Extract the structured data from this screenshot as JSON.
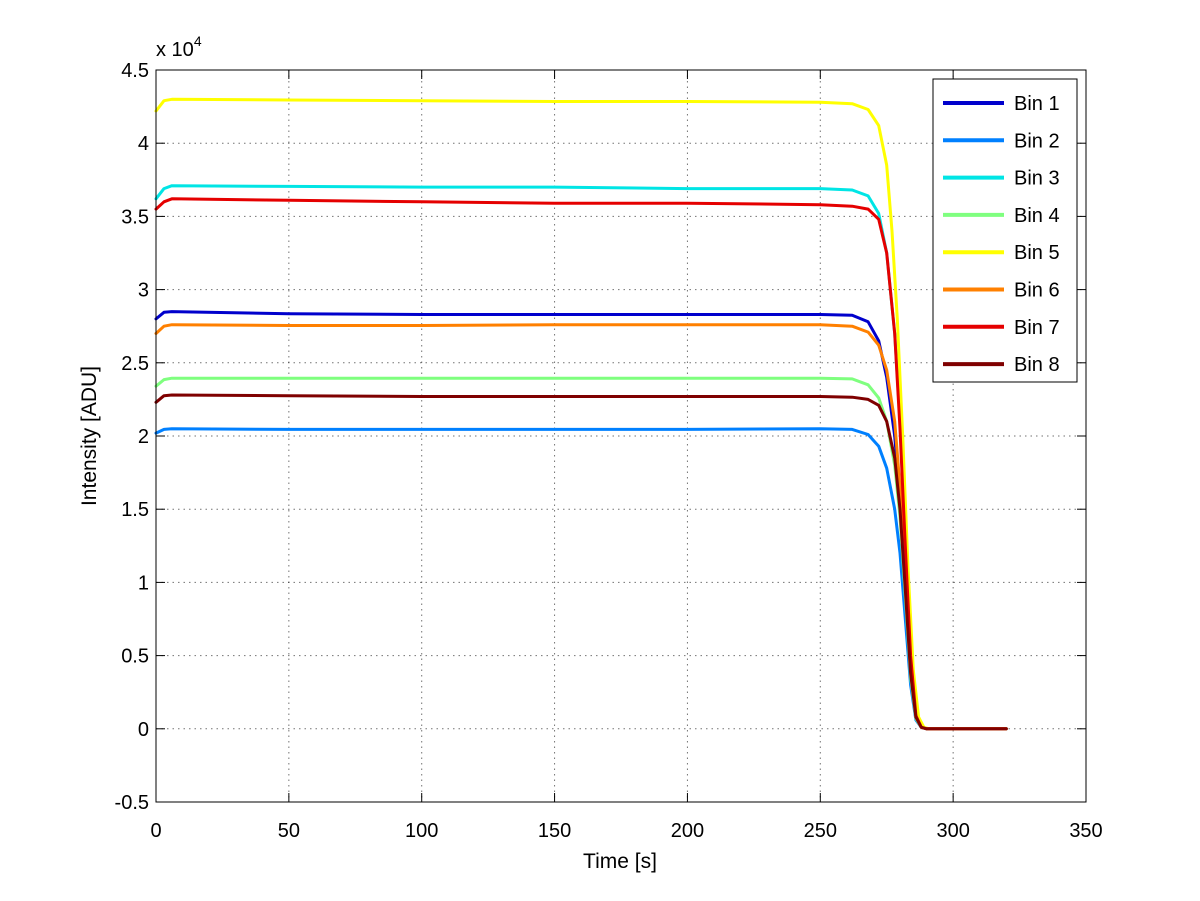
{
  "chart_data": {
    "type": "line",
    "title": "",
    "xlabel": "Time [s]",
    "ylabel": "Intensity [ADU]",
    "y_multiplier_label": "x 10",
    "y_multiplier_exponent": "4",
    "xlim": [
      0,
      350
    ],
    "ylim": [
      -5000,
      45000
    ],
    "x_ticks": [
      0,
      50,
      100,
      150,
      200,
      250,
      300,
      350
    ],
    "x_tick_labels": [
      "0",
      "50",
      "100",
      "150",
      "200",
      "250",
      "300",
      "350"
    ],
    "y_ticks": [
      -5000,
      0,
      5000,
      10000,
      15000,
      20000,
      25000,
      30000,
      35000,
      40000,
      45000
    ],
    "y_tick_labels": [
      "-0.5",
      "0",
      "0.5",
      "1",
      "1.5",
      "2",
      "2.5",
      "3",
      "3.5",
      "4",
      "4.5"
    ],
    "grid": true,
    "legend_position": "top-right",
    "series": [
      {
        "name": "Bin 1",
        "color": "#0000CC",
        "x": [
          0,
          3,
          6,
          50,
          100,
          150,
          200,
          250,
          262,
          268,
          272,
          275,
          278,
          280,
          282,
          284,
          286,
          288,
          290,
          300,
          320
        ],
        "y": [
          28000,
          28450,
          28500,
          28350,
          28300,
          28300,
          28300,
          28300,
          28250,
          27800,
          26500,
          24000,
          20000,
          15500,
          9000,
          3500,
          700,
          100,
          0,
          0,
          0
        ]
      },
      {
        "name": "Bin 2",
        "color": "#0080FF",
        "x": [
          0,
          3,
          6,
          50,
          100,
          150,
          200,
          250,
          262,
          268,
          272,
          275,
          278,
          280,
          282,
          284,
          286,
          288,
          290,
          300,
          320
        ],
        "y": [
          20200,
          20450,
          20500,
          20450,
          20450,
          20450,
          20450,
          20500,
          20450,
          20100,
          19300,
          17800,
          15000,
          12000,
          7500,
          3000,
          600,
          100,
          0,
          0,
          0
        ]
      },
      {
        "name": "Bin 3",
        "color": "#00E5E5",
        "x": [
          0,
          3,
          6,
          50,
          100,
          150,
          200,
          250,
          262,
          268,
          272,
          275,
          278,
          280,
          282,
          284,
          286,
          288,
          290,
          300,
          320
        ],
        "y": [
          36200,
          36900,
          37100,
          37050,
          37000,
          37000,
          36900,
          36900,
          36800,
          36400,
          35200,
          32500,
          27000,
          21000,
          13000,
          5000,
          900,
          100,
          0,
          0,
          0
        ]
      },
      {
        "name": "Bin 4",
        "color": "#7FFF7F",
        "x": [
          0,
          3,
          6,
          50,
          100,
          150,
          200,
          250,
          262,
          268,
          272,
          275,
          278,
          280,
          282,
          284,
          286,
          288,
          290,
          300,
          320
        ],
        "y": [
          23400,
          23850,
          23950,
          23950,
          23950,
          23950,
          23950,
          23950,
          23900,
          23500,
          22600,
          21000,
          18000,
          14500,
          9000,
          3500,
          700,
          100,
          0,
          0,
          0
        ]
      },
      {
        "name": "Bin 5",
        "color": "#FFFF00",
        "x": [
          0,
          3,
          6,
          50,
          100,
          150,
          200,
          250,
          262,
          268,
          272,
          275,
          277,
          279,
          281,
          283,
          285,
          287,
          289,
          291,
          300,
          320
        ],
        "y": [
          42200,
          42900,
          43000,
          42950,
          42900,
          42850,
          42850,
          42800,
          42700,
          42300,
          41200,
          38500,
          34000,
          28000,
          20000,
          11000,
          4000,
          800,
          100,
          0,
          0,
          0
        ]
      },
      {
        "name": "Bin 6",
        "color": "#FF8000",
        "x": [
          0,
          3,
          6,
          50,
          100,
          150,
          200,
          250,
          262,
          268,
          272,
          275,
          278,
          280,
          282,
          284,
          286,
          288,
          290,
          300,
          320
        ],
        "y": [
          27000,
          27500,
          27600,
          27550,
          27550,
          27600,
          27600,
          27600,
          27500,
          27100,
          26200,
          24500,
          21000,
          16500,
          10000,
          4000,
          800,
          100,
          0,
          0,
          0
        ]
      },
      {
        "name": "Bin 7",
        "color": "#E50000",
        "x": [
          0,
          3,
          6,
          50,
          100,
          150,
          200,
          250,
          262,
          268,
          272,
          275,
          278,
          280,
          282,
          284,
          286,
          288,
          290,
          300,
          320
        ],
        "y": [
          35500,
          36000,
          36200,
          36100,
          36000,
          35900,
          35900,
          35800,
          35700,
          35500,
          34800,
          32500,
          27000,
          20500,
          12500,
          5000,
          900,
          100,
          0,
          0,
          0
        ]
      },
      {
        "name": "Bin 8",
        "color": "#7F0000",
        "x": [
          0,
          3,
          6,
          50,
          100,
          150,
          200,
          250,
          262,
          268,
          272,
          275,
          278,
          280,
          282,
          284,
          286,
          288,
          290,
          300,
          320
        ],
        "y": [
          22300,
          22750,
          22800,
          22750,
          22700,
          22700,
          22700,
          22700,
          22650,
          22500,
          22100,
          21000,
          18500,
          15000,
          9500,
          3800,
          800,
          100,
          0,
          0,
          0
        ]
      }
    ]
  }
}
